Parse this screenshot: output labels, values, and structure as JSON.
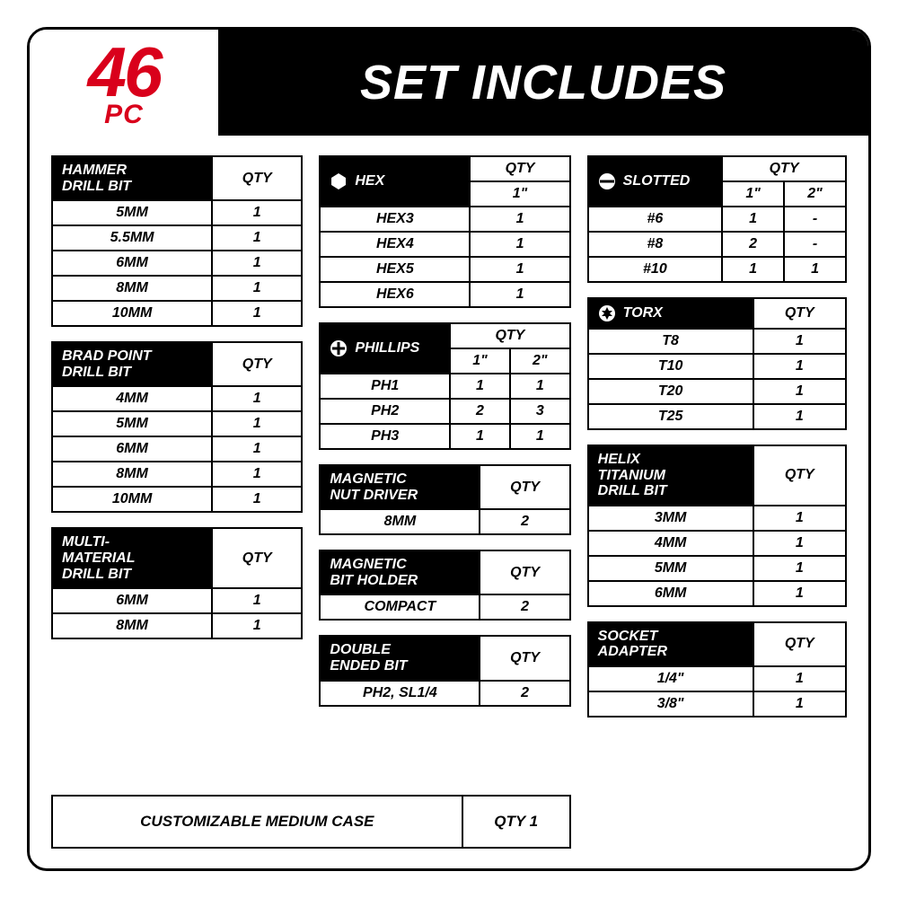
{
  "accent_color": "#d9001b",
  "badge": {
    "number": "46",
    "unit": "PC"
  },
  "title": "SET INCLUDES",
  "qty_label": "QTY",
  "size_1in": "1\"",
  "size_2in": "2\"",
  "col1": {
    "hammer": {
      "header": "HAMMER\nDRILL BIT",
      "rows": [
        {
          "label": "5MM",
          "qty": "1"
        },
        {
          "label": "5.5MM",
          "qty": "1"
        },
        {
          "label": "6MM",
          "qty": "1"
        },
        {
          "label": "8MM",
          "qty": "1"
        },
        {
          "label": "10MM",
          "qty": "1"
        }
      ]
    },
    "brad": {
      "header": "BRAD POINT\nDRILL BIT",
      "rows": [
        {
          "label": "4MM",
          "qty": "1"
        },
        {
          "label": "5MM",
          "qty": "1"
        },
        {
          "label": "6MM",
          "qty": "1"
        },
        {
          "label": "8MM",
          "qty": "1"
        },
        {
          "label": "10MM",
          "qty": "1"
        }
      ]
    },
    "multi": {
      "header": "MULTI-\nMATERIAL\nDRILL BIT",
      "rows": [
        {
          "label": "6MM",
          "qty": "1"
        },
        {
          "label": "8MM",
          "qty": "1"
        }
      ]
    }
  },
  "col2": {
    "hex": {
      "header": "HEX",
      "rows": [
        {
          "label": "HEX3",
          "qty": "1"
        },
        {
          "label": "HEX4",
          "qty": "1"
        },
        {
          "label": "HEX5",
          "qty": "1"
        },
        {
          "label": "HEX6",
          "qty": "1"
        }
      ]
    },
    "phillips": {
      "header": "PHILLIPS",
      "rows": [
        {
          "label": "PH1",
          "q1": "1",
          "q2": "1"
        },
        {
          "label": "PH2",
          "q1": "2",
          "q2": "3"
        },
        {
          "label": "PH3",
          "q1": "1",
          "q2": "1"
        }
      ]
    },
    "magnut": {
      "header": "MAGNETIC\nNUT DRIVER",
      "rows": [
        {
          "label": "8MM",
          "qty": "2"
        }
      ]
    },
    "magbit": {
      "header": "MAGNETIC\nBIT HOLDER",
      "rows": [
        {
          "label": "COMPACT",
          "qty": "2"
        }
      ]
    },
    "dblend": {
      "header": "DOUBLE\nENDED BIT",
      "rows": [
        {
          "label": "PH2, SL1/4",
          "qty": "2"
        }
      ]
    }
  },
  "col3": {
    "slotted": {
      "header": "SLOTTED",
      "rows": [
        {
          "label": "#6",
          "q1": "1",
          "q2": "-"
        },
        {
          "label": "#8",
          "q1": "2",
          "q2": "-"
        },
        {
          "label": "#10",
          "q1": "1",
          "q2": "1"
        }
      ]
    },
    "torx": {
      "header": "TORX",
      "rows": [
        {
          "label": "T8",
          "qty": "1"
        },
        {
          "label": "T10",
          "qty": "1"
        },
        {
          "label": "T20",
          "qty": "1"
        },
        {
          "label": "T25",
          "qty": "1"
        }
      ]
    },
    "helix": {
      "header": "HELIX\nTITANIUM\nDRILL BIT",
      "rows": [
        {
          "label": "3MM",
          "qty": "1"
        },
        {
          "label": "4MM",
          "qty": "1"
        },
        {
          "label": "5MM",
          "qty": "1"
        },
        {
          "label": "6MM",
          "qty": "1"
        }
      ]
    },
    "socket": {
      "header": "SOCKET\nADAPTER",
      "rows": [
        {
          "label": "1/4\"",
          "qty": "1"
        },
        {
          "label": "3/8\"",
          "qty": "1"
        }
      ]
    }
  },
  "footer": {
    "label": "CUSTOMIZABLE MEDIUM CASE",
    "qty": "QTY 1"
  }
}
